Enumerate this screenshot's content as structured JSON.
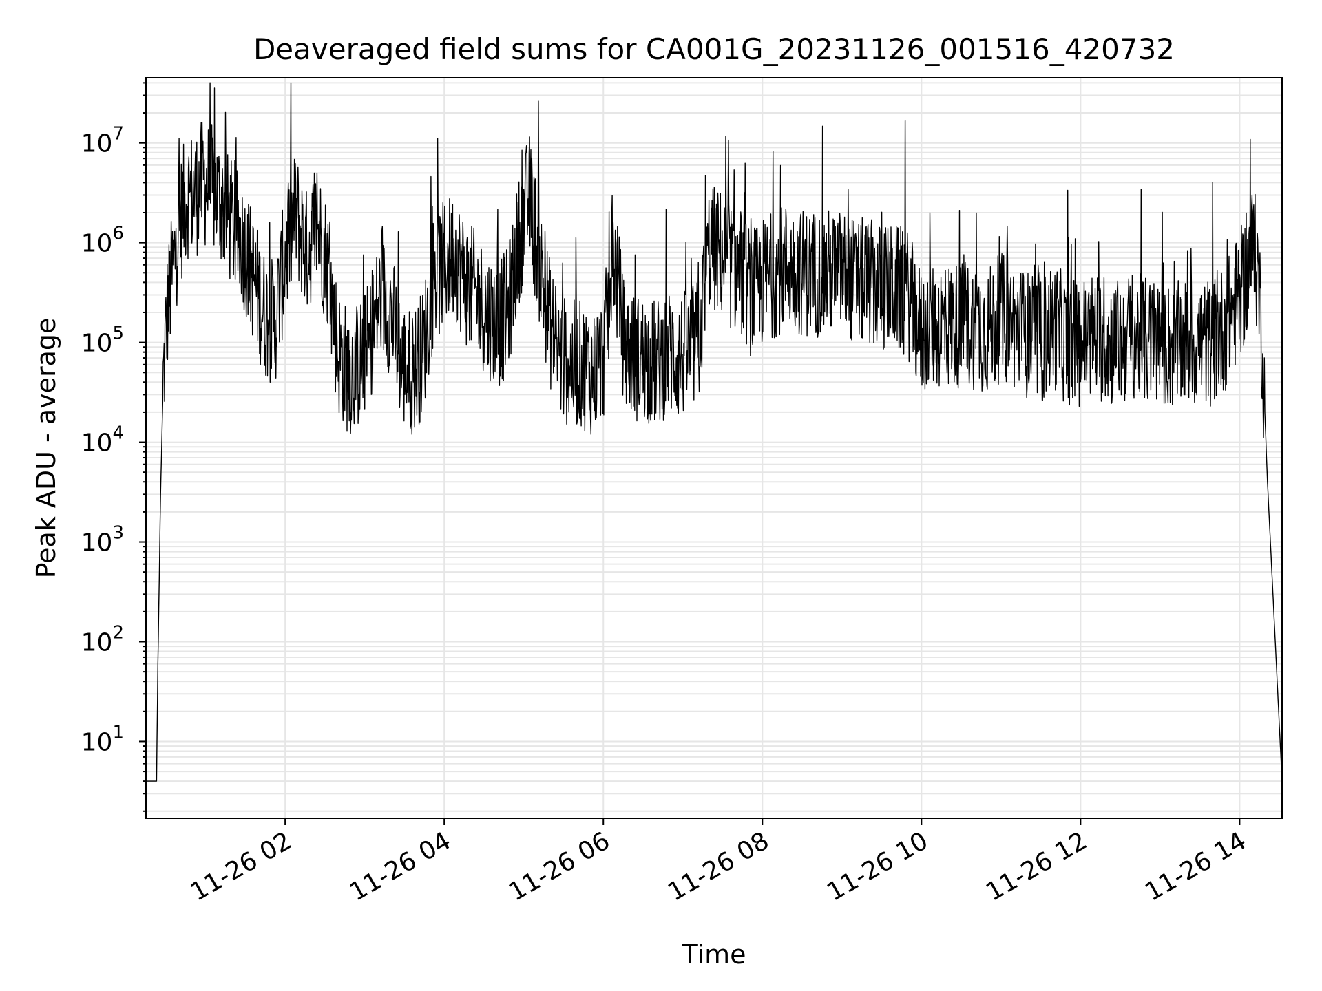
{
  "chart_data": {
    "type": "line",
    "title": "Deaveraged field sums for CA001G_20231126_001516_420732",
    "xlabel": "Time",
    "ylabel": "Peak ADU - average",
    "y_scale": "log",
    "ylim": [
      1.7,
      45000000
    ],
    "xlim": [
      "2023-11-26 00:15",
      "2023-11-26 14:32"
    ],
    "grid": true,
    "grid_color": "#e6e6e6",
    "line_color": "#000000",
    "x_tick_labels": [
      "11-26 02",
      "11-26 04",
      "11-26 06",
      "11-26 08",
      "11-26 10",
      "11-26 12",
      "11-26 14"
    ],
    "y_tick_labels": [
      "10",
      "10",
      "10",
      "10",
      "10",
      "10",
      "10"
    ],
    "y_tick_exponents": [
      "1",
      "2",
      "3",
      "4",
      "5",
      "6",
      "7"
    ],
    "series": [
      {
        "name": "",
        "x": [
          "2023-11-26 00:15",
          "2023-11-26 00:23",
          "2023-11-26 00:24",
          "2023-11-26 00:26",
          "2023-11-26 00:28",
          "2023-11-26 00:31",
          "2023-11-26 00:35",
          "2023-11-26 00:40",
          "2023-11-26 00:46",
          "2023-11-26 00:52",
          "2023-11-26 00:58",
          "2023-11-26 01:05",
          "2023-11-26 01:12",
          "2023-11-26 01:20",
          "2023-11-26 01:28",
          "2023-11-26 01:35",
          "2023-11-26 01:44",
          "2023-11-26 01:52",
          "2023-11-26 02:00",
          "2023-11-26 02:08",
          "2023-11-26 02:16",
          "2023-11-26 02:24",
          "2023-11-26 02:32",
          "2023-11-26 02:40",
          "2023-11-26 02:48",
          "2023-11-26 02:56",
          "2023-11-26 03:04",
          "2023-11-26 03:12",
          "2023-11-26 03:20",
          "2023-11-26 03:28",
          "2023-11-26 03:36",
          "2023-11-26 03:44",
          "2023-11-26 03:52",
          "2023-11-26 04:00",
          "2023-11-26 04:08",
          "2023-11-26 04:16",
          "2023-11-26 04:24",
          "2023-11-26 04:32",
          "2023-11-26 04:40",
          "2023-11-26 04:48",
          "2023-11-26 04:56",
          "2023-11-26 05:04",
          "2023-11-26 05:12",
          "2023-11-26 05:20",
          "2023-11-26 05:28",
          "2023-11-26 05:36",
          "2023-11-26 05:44",
          "2023-11-26 05:52",
          "2023-11-26 06:00",
          "2023-11-26 06:08",
          "2023-11-26 06:16",
          "2023-11-26 06:24",
          "2023-11-26 06:32",
          "2023-11-26 06:40",
          "2023-11-26 06:48",
          "2023-11-26 06:56",
          "2023-11-26 07:04",
          "2023-11-26 07:12",
          "2023-11-26 07:20",
          "2023-11-26 07:28",
          "2023-11-26 07:36",
          "2023-11-26 07:44",
          "2023-11-26 07:52",
          "2023-11-26 08:00",
          "2023-11-26 08:10",
          "2023-11-26 08:20",
          "2023-11-26 08:30",
          "2023-11-26 08:40",
          "2023-11-26 08:50",
          "2023-11-26 09:00",
          "2023-11-26 09:10",
          "2023-11-26 09:20",
          "2023-11-26 09:30",
          "2023-11-26 09:40",
          "2023-11-26 09:50",
          "2023-11-26 10:00",
          "2023-11-26 10:10",
          "2023-11-26 10:20",
          "2023-11-26 10:30",
          "2023-11-26 10:40",
          "2023-11-26 10:50",
          "2023-11-26 11:00",
          "2023-11-26 11:10",
          "2023-11-26 11:20",
          "2023-11-26 11:30",
          "2023-11-26 11:40",
          "2023-11-26 11:50",
          "2023-11-26 12:00",
          "2023-11-26 12:10",
          "2023-11-26 12:20",
          "2023-11-26 12:30",
          "2023-11-26 12:40",
          "2023-11-26 12:50",
          "2023-11-26 13:00",
          "2023-11-26 13:10",
          "2023-11-26 13:20",
          "2023-11-26 13:30",
          "2023-11-26 13:40",
          "2023-11-26 13:50",
          "2023-11-26 14:00",
          "2023-11-26 14:06",
          "2023-11-26 14:10",
          "2023-11-26 14:14",
          "2023-11-26 14:17",
          "2023-11-26 14:19",
          "2023-11-26 14:21",
          "2023-11-26 14:32"
        ],
        "y": [
          4,
          4,
          60,
          3000,
          40000,
          200000,
          500000,
          1500000,
          3000000,
          3000000,
          4000000,
          3500000,
          2500000,
          1500000,
          1000000,
          500000,
          200000,
          150000,
          700000,
          2000000,
          800000,
          1500000,
          600000,
          80000,
          50000,
          60000,
          100000,
          300000,
          200000,
          60000,
          50000,
          80000,
          400000,
          600000,
          800000,
          400000,
          300000,
          200000,
          150000,
          200000,
          1000000,
          3000000,
          600000,
          150000,
          70000,
          60000,
          60000,
          50000,
          70000,
          800000,
          90000,
          70000,
          70000,
          60000,
          80000,
          70000,
          80000,
          100000,
          900000,
          800000,
          600000,
          500000,
          300000,
          400000,
          500000,
          600000,
          500000,
          500000,
          500000,
          500000,
          400000,
          400000,
          350000,
          350000,
          300000,
          120000,
          150000,
          150000,
          150000,
          150000,
          130000,
          180000,
          150000,
          120000,
          100000,
          150000,
          100000,
          100000,
          120000,
          100000,
          100000,
          120000,
          100000,
          100000,
          90000,
          100000,
          100000,
          100000,
          150000,
          300000,
          500000,
          900000,
          500000,
          100000,
          20000,
          4000,
          4
        ]
      }
    ]
  }
}
